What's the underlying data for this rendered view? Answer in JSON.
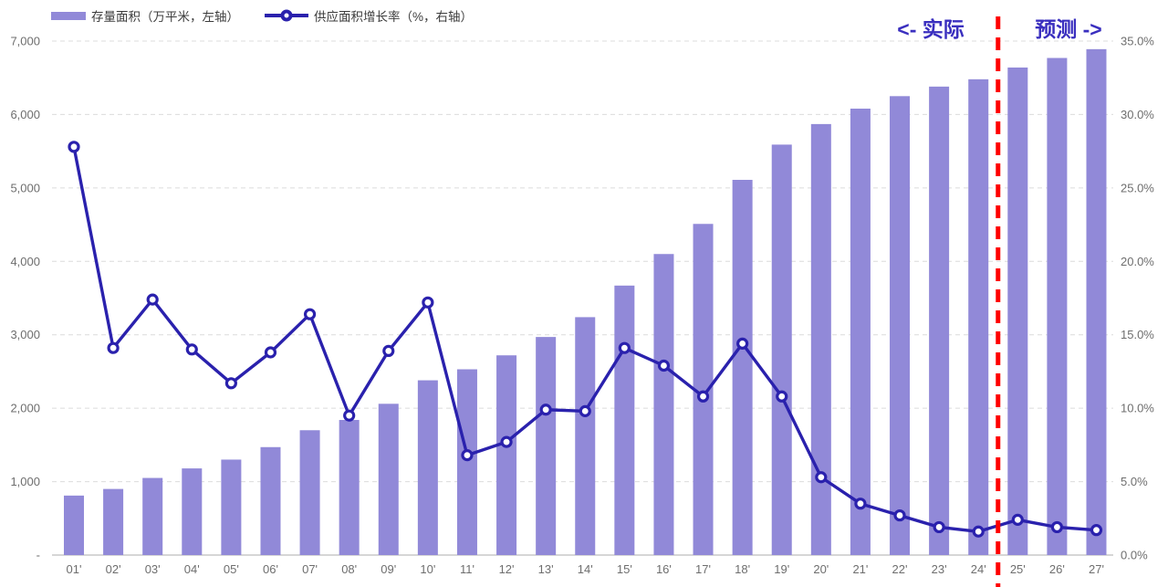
{
  "colors": {
    "bar": "#9189D8",
    "line": "#2A21AD",
    "marker_fill": "#FFFFFF",
    "divider": "#FF0000",
    "grid": "#DCDCDC",
    "baseline": "#C9C9C9",
    "axis_text": "#6E6E6E",
    "legend_text": "#3C3C3C",
    "annotation": "#3A2FBF"
  },
  "chart_data": {
    "type": "bar",
    "subtype": "bar+line dual axis",
    "grid": true,
    "legend_position": "top-left",
    "categories": [
      "01'",
      "02'",
      "03'",
      "04'",
      "05'",
      "06'",
      "07'",
      "08'",
      "09'",
      "10'",
      "11'",
      "12'",
      "13'",
      "14'",
      "15'",
      "16'",
      "17'",
      "18'",
      "19'",
      "20'",
      "21'",
      "22'",
      "23'",
      "24'",
      "25'",
      "26'",
      "27'"
    ],
    "series": [
      {
        "name": "存量面积（万平米，左轴）",
        "type": "bar",
        "axis": "left",
        "values": [
          810,
          900,
          1050,
          1180,
          1300,
          1470,
          1700,
          1840,
          2060,
          2380,
          2530,
          2720,
          2970,
          3240,
          3670,
          4100,
          4510,
          5110,
          5590,
          5870,
          6080,
          6250,
          6380,
          6480,
          6640,
          6770,
          6890
        ]
      },
      {
        "name": "供应面积增长率（%，右轴）",
        "type": "line",
        "axis": "right",
        "values": [
          27.8,
          14.1,
          17.4,
          14.0,
          11.7,
          13.8,
          16.4,
          9.5,
          13.9,
          17.2,
          6.8,
          7.7,
          9.9,
          9.8,
          14.1,
          12.9,
          10.8,
          14.4,
          10.8,
          5.3,
          3.5,
          2.7,
          1.9,
          1.6,
          2.4,
          1.9,
          1.7
        ]
      }
    ],
    "left_axis": {
      "min": 0,
      "max": 7000,
      "ticks": [
        {
          "v": 7000,
          "label": "7,000"
        },
        {
          "v": 6000,
          "label": "6,000"
        },
        {
          "v": 5000,
          "label": "5,000"
        },
        {
          "v": 4000,
          "label": "4,000"
        },
        {
          "v": 3000,
          "label": "3,000"
        },
        {
          "v": 2000,
          "label": "2,000"
        },
        {
          "v": 1000,
          "label": "1,000"
        },
        {
          "v": 0,
          "label": "-"
        }
      ]
    },
    "right_axis": {
      "min": 0,
      "max": 35,
      "ticks": [
        {
          "v": 35,
          "label": "35.0%"
        },
        {
          "v": 30,
          "label": "30.0%"
        },
        {
          "v": 25,
          "label": "25.0%"
        },
        {
          "v": 20,
          "label": "20.0%"
        },
        {
          "v": 15,
          "label": "15.0%"
        },
        {
          "v": 10,
          "label": "10.0%"
        },
        {
          "v": 5,
          "label": "5.0%"
        },
        {
          "v": 0,
          "label": "0.0%"
        }
      ]
    },
    "annotations": {
      "actual": "<- 实际",
      "forecast": "预测 ->",
      "divider_between": [
        "24'",
        "25'"
      ]
    }
  }
}
